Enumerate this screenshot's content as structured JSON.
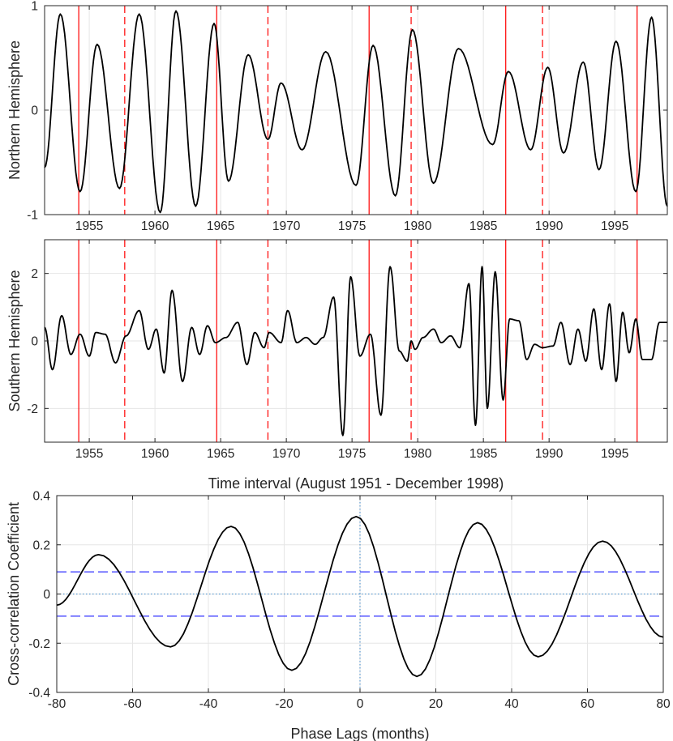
{
  "chart_data": [
    {
      "type": "line",
      "ylabel": "Northern Hemisphere",
      "xlabel": "",
      "xlim": [
        1951.6,
        1999.0
      ],
      "ylim": [
        -1,
        1
      ],
      "xticks": [
        "1955",
        "1960",
        "1965",
        "1970",
        "1975",
        "1980",
        "1985",
        "1990",
        "1995"
      ],
      "xtick_values": [
        1955,
        1960,
        1965,
        1970,
        1975,
        1980,
        1985,
        1990,
        1995
      ],
      "yticks": [
        "-1",
        "0",
        "1"
      ],
      "ytick_values": [
        -1,
        0,
        1
      ],
      "grid": true,
      "series": [
        {
          "color": "#000000",
          "x": [
            1951.6,
            1952.8,
            1954.3,
            1955.6,
            1957.3,
            1958.8,
            1960.4,
            1961.6,
            1963.1,
            1964.5,
            1965.6,
            1967.1,
            1968.6,
            1969.6,
            1971.2,
            1973.0,
            1975.3,
            1976.6,
            1978.3,
            1979.6,
            1981.2,
            1983.1,
            1985.7,
            1986.9,
            1988.6,
            1989.9,
            1991.1,
            1992.6,
            1993.8,
            1995.1,
            1996.6,
            1997.8,
            1999.0
          ],
          "values": [
            -0.55,
            0.92,
            -0.78,
            0.63,
            -0.75,
            0.92,
            -0.98,
            0.95,
            -0.92,
            0.83,
            -0.68,
            0.53,
            -0.28,
            0.26,
            -0.38,
            0.56,
            -0.72,
            0.62,
            -0.82,
            0.77,
            -0.7,
            0.59,
            -0.33,
            0.37,
            -0.38,
            0.41,
            -0.41,
            0.46,
            -0.57,
            0.66,
            -0.78,
            0.89,
            -0.92
          ]
        }
      ],
      "vlines_solid": [
        1954.2,
        1964.7,
        1976.3,
        1986.7,
        1996.7
      ],
      "vlines_dashed": [
        1957.7,
        1968.6,
        1979.5,
        1989.5
      ],
      "vline_color": "#ff0000"
    },
    {
      "type": "line",
      "ylabel": "Southern Hemisphere",
      "xlabel": "Time interval (August 1951 - December 1998)",
      "xlim": [
        1951.6,
        1999.0
      ],
      "ylim": [
        -3,
        3
      ],
      "xticks": [
        "1955",
        "1960",
        "1965",
        "1970",
        "1975",
        "1980",
        "1985",
        "1990",
        "1995"
      ],
      "xtick_values": [
        1955,
        1960,
        1965,
        1970,
        1975,
        1980,
        1985,
        1990,
        1995
      ],
      "yticks": [
        "-2",
        "0",
        "2"
      ],
      "ytick_values": [
        -2,
        0,
        2
      ],
      "grid": true,
      "series": [
        {
          "color": "#000000",
          "x": [
            1951.6,
            1952.2,
            1952.9,
            1953.6,
            1954.3,
            1955.0,
            1955.5,
            1956.2,
            1957.0,
            1957.8,
            1958.8,
            1959.5,
            1960.1,
            1960.7,
            1961.3,
            1962.1,
            1962.8,
            1963.4,
            1964.0,
            1964.6,
            1965.4,
            1966.3,
            1967.0,
            1967.6,
            1968.3,
            1968.7,
            1969.6,
            1970.1,
            1970.8,
            1971.5,
            1972.2,
            1972.8,
            1973.6,
            1974.3,
            1974.9,
            1975.6,
            1976.4,
            1977.2,
            1977.9,
            1978.6,
            1979.2,
            1979.5,
            1979.8,
            1980.4,
            1981.2,
            1981.8,
            1982.5,
            1983.2,
            1983.9,
            1984.4,
            1984.9,
            1985.3,
            1985.9,
            1986.5,
            1987.0,
            1987.7,
            1988.3,
            1988.9,
            1989.5,
            1990.3,
            1990.9,
            1991.6,
            1992.2,
            1992.8,
            1993.4,
            1994.0,
            1994.6,
            1995.1,
            1995.6,
            1996.1,
            1996.6,
            1997.1,
            1997.8,
            1998.4,
            1999.0
          ],
          "values": [
            0.4,
            -0.85,
            0.75,
            -0.4,
            0.2,
            -0.45,
            0.25,
            0.2,
            -0.65,
            0.15,
            0.9,
            -0.25,
            0.35,
            -0.95,
            1.5,
            -1.2,
            0.4,
            -0.4,
            0.45,
            -0.05,
            0.1,
            0.55,
            -0.7,
            0.25,
            -0.2,
            0.25,
            -0.05,
            0.9,
            -0.05,
            0.1,
            -0.1,
            0.1,
            1.3,
            -2.8,
            1.9,
            -0.45,
            0.2,
            -2.2,
            2.2,
            -0.3,
            -0.6,
            0.0,
            -0.25,
            0.1,
            0.35,
            -0.05,
            0.15,
            -0.2,
            1.7,
            -2.5,
            2.2,
            -2.0,
            2.05,
            -1.75,
            0.65,
            0.6,
            -0.55,
            -0.1,
            -0.2,
            -0.15,
            0.55,
            -0.7,
            0.35,
            -0.6,
            0.95,
            -0.85,
            1.1,
            -1.2,
            0.85,
            -0.35,
            0.65,
            -0.55,
            -0.55,
            0.55,
            0.55
          ]
        }
      ],
      "vlines_solid": [
        1954.2,
        1964.7,
        1976.3,
        1986.7,
        1996.7
      ],
      "vlines_dashed": [
        1957.7,
        1968.6,
        1979.5,
        1989.5
      ],
      "vline_color": "#ff0000"
    },
    {
      "type": "line",
      "ylabel": "Cross-correlation Coefficient",
      "xlabel": "Phase Lags (months)",
      "xlim": [
        -80,
        80
      ],
      "ylim": [
        -0.4,
        0.4
      ],
      "xticks": [
        "-80",
        "-60",
        "-40",
        "-20",
        "0",
        "20",
        "40",
        "60",
        "80"
      ],
      "xtick_values": [
        -80,
        -60,
        -40,
        -20,
        0,
        20,
        40,
        60,
        80
      ],
      "yticks": [
        "-0.4",
        "-0.2",
        "0",
        "0.2",
        "0.4"
      ],
      "ytick_values": [
        -0.4,
        -0.2,
        0,
        0.2,
        0.4
      ],
      "grid": true,
      "series": [
        {
          "color": "#000000",
          "x": [
            -80,
            -69,
            -50,
            -34,
            -18,
            -1,
            15,
            31,
            47,
            64,
            80
          ],
          "values": [
            -0.045,
            0.16,
            -0.215,
            0.275,
            -0.31,
            0.315,
            -0.335,
            0.29,
            -0.255,
            0.215,
            -0.175
          ]
        }
      ],
      "confidence_upper": {
        "x": [
          -80,
          80
        ],
        "values": [
          0.09,
          0.09
        ]
      },
      "confidence_lower": {
        "x": [
          -80,
          80
        ],
        "values": [
          -0.09,
          -0.09
        ]
      },
      "confidence_color": "#0000ff",
      "zero_line_color": "#3a86c8"
    }
  ]
}
